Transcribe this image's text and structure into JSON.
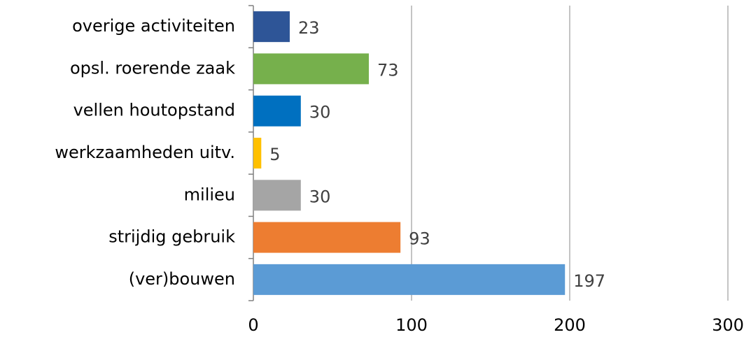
{
  "chart_data": {
    "type": "bar",
    "orientation": "horizontal",
    "categories": [
      "overige activiteiten",
      "opsl. roerende zaak",
      "vellen houtopstand",
      "werkzaamheden uitv.",
      "milieu",
      "strijdig gebruik",
      "(ver)bouwen"
    ],
    "values": [
      23,
      73,
      30,
      5,
      30,
      93,
      197
    ],
    "colors": [
      "#2e5597",
      "#76b04c",
      "#0070c0",
      "#ffc000",
      "#a5a5a5",
      "#ed7d31",
      "#5b9bd5"
    ],
    "xlim": [
      0,
      300
    ],
    "xticks": [
      0,
      100,
      200,
      300
    ],
    "grid": true
  }
}
